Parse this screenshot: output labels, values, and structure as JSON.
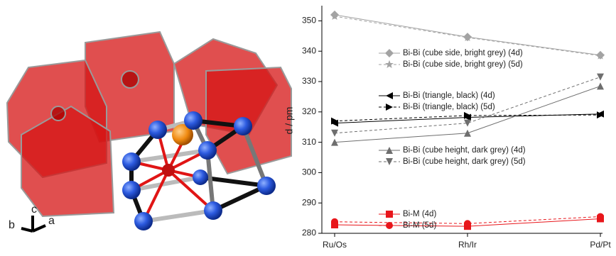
{
  "structure_axes": {
    "a": "a",
    "b": "b",
    "c": "c"
  },
  "chart_data": {
    "type": "line",
    "y_label": "d / pm",
    "categories": [
      "Ru/Os",
      "Rh/Ir",
      "Pd/Pt"
    ],
    "ylim": [
      280,
      355
    ],
    "yticks": [
      280,
      290,
      300,
      310,
      320,
      330,
      340,
      350
    ],
    "legend": "inside",
    "series": [
      {
        "name": "Bi-Bi (cube side, bright grey)  (4d)",
        "color": "#a3a3a3",
        "marker": "diamond",
        "linestyle": "solid",
        "values": [
          352.0,
          344.7,
          338.7
        ]
      },
      {
        "name": "Bi-Bi (cube side, bright grey)  (5d)",
        "color": "#a3a3a3",
        "marker": "star",
        "linestyle": "dashed",
        "values": [
          351.5,
          344.5,
          338.5
        ]
      },
      {
        "name": "Bi-Bi (triangle, black)  (4d)",
        "color": "#000000",
        "marker": "triangle-left",
        "linestyle": "solid",
        "values": [
          316.3,
          318.2,
          319.3
        ]
      },
      {
        "name": "Bi-Bi (triangle, black)  (5d)",
        "color": "#000000",
        "marker": "triangle-right",
        "linestyle": "dashed",
        "values": [
          317.0,
          318.8,
          319.0
        ]
      },
      {
        "name": "Bi-Bi (cube height, dark grey)  (4d)",
        "color": "#6e6e6e",
        "marker": "triangle-up",
        "linestyle": "solid",
        "values": [
          310.0,
          313.0,
          328.5
        ]
      },
      {
        "name": "Bi-Bi (cube height, dark grey)  (5d)",
        "color": "#6e6e6e",
        "marker": "triangle-down",
        "linestyle": "dashed",
        "values": [
          313.0,
          316.3,
          331.5
        ]
      },
      {
        "name": "Bi-M (4d)",
        "color": "#e8161b",
        "marker": "square",
        "linestyle": "solid",
        "values": [
          282.8,
          282.3,
          284.8
        ]
      },
      {
        "name": "Bi-M (5d)",
        "color": "#e8161b",
        "marker": "circle",
        "linestyle": "dashed",
        "values": [
          283.8,
          283.2,
          285.5
        ]
      }
    ]
  }
}
